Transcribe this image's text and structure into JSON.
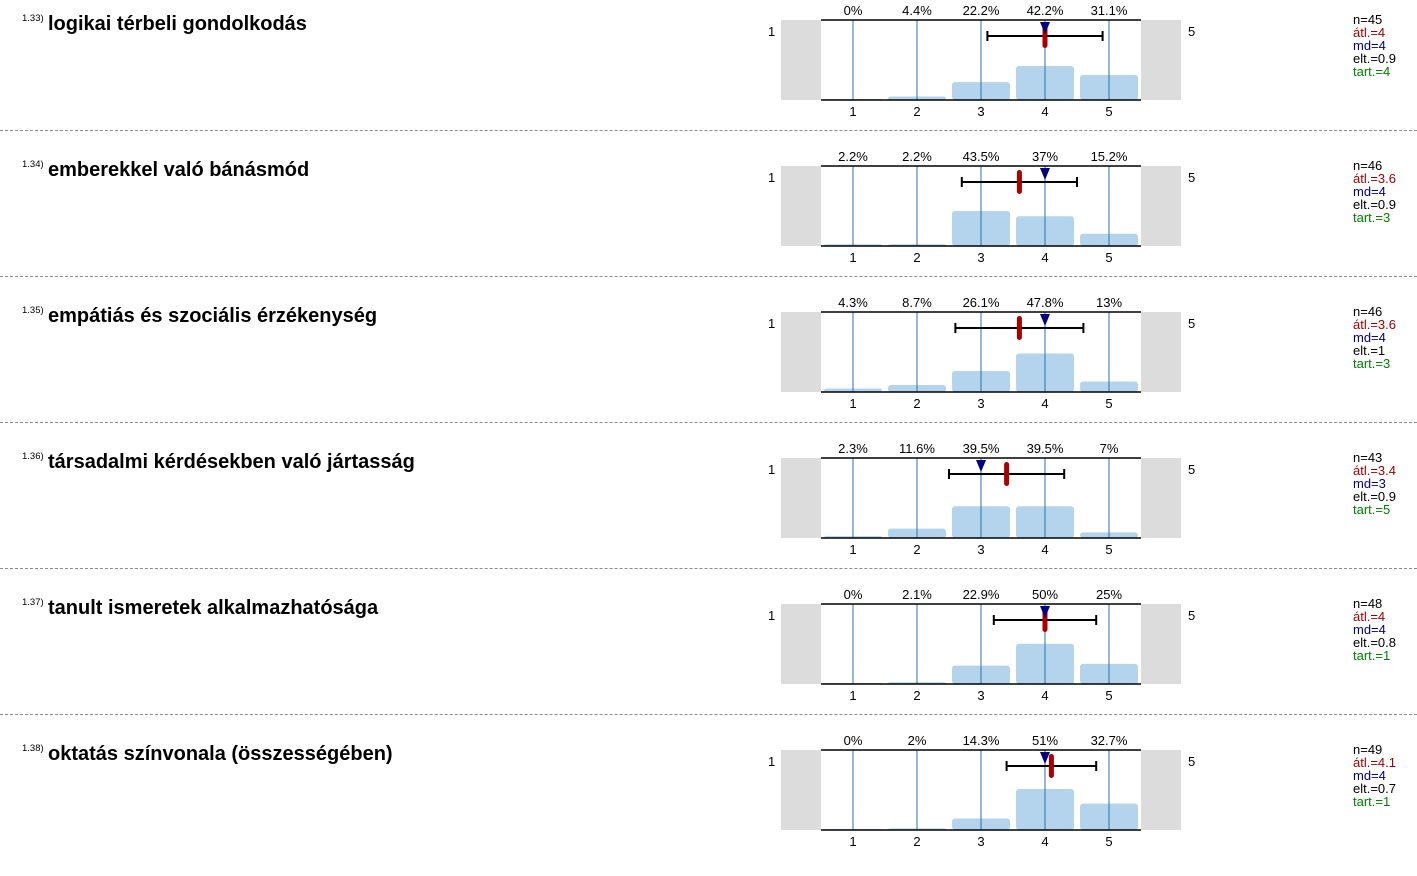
{
  "scale": {
    "left_label": "1",
    "right_label": "5"
  },
  "chart_data": [
    {
      "type": "bar",
      "number": "1.33)",
      "title": "logikai térbeli gondolkodás",
      "categories": [
        "1",
        "2",
        "3",
        "4",
        "5"
      ],
      "values": [
        0,
        4.4,
        22.2,
        42.2,
        31.1
      ],
      "value_labels": [
        "0%",
        "4.4%",
        "22.2%",
        "42.2%",
        "31.1%"
      ],
      "mean": 4,
      "median": 4,
      "sd": 0.9,
      "sd_range": [
        3.1,
        4.9
      ],
      "stats": {
        "n": "n=45",
        "mean": "átl.=4",
        "md": "md=4",
        "sd": "elt.=0.9",
        "tart": "tart.=4"
      }
    },
    {
      "type": "bar",
      "number": "1.34)",
      "title": "emberekkel való bánásmód",
      "categories": [
        "1",
        "2",
        "3",
        "4",
        "5"
      ],
      "values": [
        2.2,
        2.2,
        43.5,
        37,
        15.2
      ],
      "value_labels": [
        "2.2%",
        "2.2%",
        "43.5%",
        "37%",
        "15.2%"
      ],
      "mean": 3.6,
      "median": 4,
      "sd": 0.9,
      "sd_range": [
        2.7,
        4.5
      ],
      "stats": {
        "n": "n=46",
        "mean": "átl.=3.6",
        "md": "md=4",
        "sd": "elt.=0.9",
        "tart": "tart.=3"
      }
    },
    {
      "type": "bar",
      "number": "1.35)",
      "title": "empátiás és szociális érzékenység",
      "categories": [
        "1",
        "2",
        "3",
        "4",
        "5"
      ],
      "values": [
        4.3,
        8.7,
        26.1,
        47.8,
        13
      ],
      "value_labels": [
        "4.3%",
        "8.7%",
        "26.1%",
        "47.8%",
        "13%"
      ],
      "mean": 3.6,
      "median": 4,
      "sd": 1,
      "sd_range": [
        2.6,
        4.6
      ],
      "stats": {
        "n": "n=46",
        "mean": "átl.=3.6",
        "md": "md=4",
        "sd": "elt.=1",
        "tart": "tart.=3"
      }
    },
    {
      "type": "bar",
      "number": "1.36)",
      "title": "társadalmi kérdésekben való jártasság",
      "categories": [
        "1",
        "2",
        "3",
        "4",
        "5"
      ],
      "values": [
        2.3,
        11.6,
        39.5,
        39.5,
        7
      ],
      "value_labels": [
        "2.3%",
        "11.6%",
        "39.5%",
        "39.5%",
        "7%"
      ],
      "mean": 3.4,
      "median": 3,
      "sd": 0.9,
      "sd_range": [
        2.5,
        4.3
      ],
      "stats": {
        "n": "n=43",
        "mean": "átl.=3.4",
        "md": "md=3",
        "sd": "elt.=0.9",
        "tart": "tart.=5"
      }
    },
    {
      "type": "bar",
      "number": "1.37)",
      "title": "tanult ismeretek alkalmazhatósága",
      "categories": [
        "1",
        "2",
        "3",
        "4",
        "5"
      ],
      "values": [
        0,
        2.1,
        22.9,
        50,
        25
      ],
      "value_labels": [
        "0%",
        "2.1%",
        "22.9%",
        "50%",
        "25%"
      ],
      "mean": 4,
      "median": 4,
      "sd": 0.8,
      "sd_range": [
        3.2,
        4.8
      ],
      "stats": {
        "n": "n=48",
        "mean": "átl.=4",
        "md": "md=4",
        "sd": "elt.=0.8",
        "tart": "tart.=1"
      }
    },
    {
      "type": "bar",
      "number": "1.38)",
      "title": "oktatás színvonala (összességében)",
      "categories": [
        "1",
        "2",
        "3",
        "4",
        "5"
      ],
      "values": [
        0,
        2,
        14.3,
        51,
        32.7
      ],
      "value_labels": [
        "0%",
        "2%",
        "14.3%",
        "51%",
        "32.7%"
      ],
      "mean": 4.1,
      "median": 4,
      "sd": 0.7,
      "sd_range": [
        3.4,
        4.8
      ],
      "stats": {
        "n": "n=49",
        "mean": "átl.=4.1",
        "md": "md=4",
        "sd": "elt.=0.7",
        "tart": "tart.=1"
      }
    }
  ],
  "colors": {
    "bar": "#b3d4ec",
    "grid_line": "#2e6fb0",
    "side_box": "#dcdcdc",
    "mean_marker": "#aa0000",
    "median_marker": "#000080",
    "axis": "#000000"
  }
}
